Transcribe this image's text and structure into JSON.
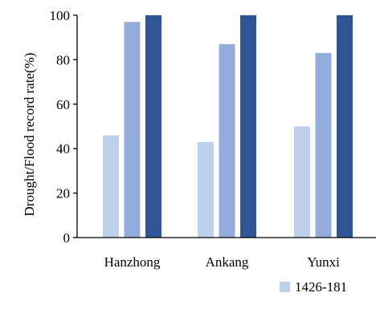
{
  "chart_data": {
    "type": "bar",
    "ylabel": "Drought/Flood record rate(%)",
    "xlabel": "",
    "ylim": [
      0,
      100
    ],
    "yticks": [
      0,
      20,
      40,
      60,
      80,
      100
    ],
    "categories": [
      "Hanzhong",
      "Ankang",
      "Yunxi"
    ],
    "series": [
      {
        "name": "1426-181",
        "color": "#bdd0ec",
        "values": [
          46,
          43,
          50
        ]
      },
      {
        "name": "",
        "color": "#93acdc",
        "values": [
          97,
          87,
          83
        ]
      },
      {
        "name": "",
        "color": "#2f5597",
        "values": [
          100,
          100,
          100
        ]
      }
    ],
    "legend_position": "bottom-right"
  }
}
